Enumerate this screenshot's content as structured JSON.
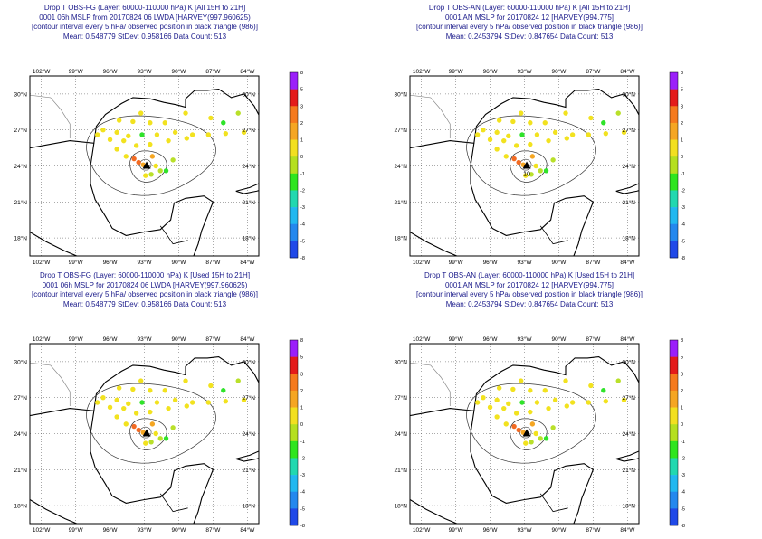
{
  "panels": [
    {
      "id": "obs-fg-all",
      "title": [
        "Drop T OBS-FG (Layer: 60000-110000 hPa) K [All 15H to 21H]",
        "0001 06h MSLP from 20170824 06 LWDA [HARVEY(997.960625)",
        "[contour interval every 5 hPa/ observed position in black triangle (986)]",
        "Mean: 0.548779 StDev: 0.958166 Data Count: 513"
      ],
      "center_label": ""
    },
    {
      "id": "obs-an-all",
      "title": [
        "Drop T OBS-AN (Layer: 60000-110000 hPa) K [All 15H to 21H]",
        "0001 AN MSLP for 20170824 12 [HARVEY(994.775]",
        "[contour interval every 5 hPa/ observed position in black triangle (986)]",
        "Mean: 0.2453794 StDev: 0.847654 Data Count: 513"
      ],
      "center_label": "10"
    },
    {
      "id": "obs-fg-used",
      "title": [
        "Drop T OBS-FG (Layer: 60000-110000 hPa) K [Used 15H to 21H]",
        "0001 06h MSLP for 20170824 06 LWDA [HARVEY(997.960625)",
        "[contour interval every 5 hPa/ observed position in black triangle (986)]",
        "Mean: 0.548779 StDev: 0.958166 Data Count: 513"
      ],
      "center_label": ""
    },
    {
      "id": "obs-an-used",
      "title": [
        "Drop T OBS-AN (Layer: 60000-110000 hPa) K [Used 15H to 21H]",
        "0001 AN MSLP for 20170824 12 [HARVEY(994.775]",
        "[contour interval every 5 hPa/ observed position in black triangle (986)]",
        "Mean: 0.2453794 StDev: 0.847654 Data Count: 513"
      ],
      "center_label": ""
    }
  ],
  "axes": {
    "lon_labels": [
      "102°W",
      "99°W",
      "96°W",
      "93°W",
      "90°W",
      "87°W",
      "84°W"
    ],
    "lon_values": [
      -102,
      -99,
      -96,
      -93,
      -90,
      -87,
      -84
    ],
    "lat_labels": [
      "30°N",
      "27°N",
      "24°N",
      "21°N",
      "18°N"
    ],
    "lat_values": [
      30,
      27,
      24,
      21,
      18
    ],
    "lon_range": [
      -103,
      -83
    ],
    "lat_range": [
      16.5,
      31.5
    ]
  },
  "colorbar": {
    "labels": [
      "8",
      "5",
      "3",
      "2",
      "1",
      "0",
      "-1",
      "-2",
      "-3",
      "-4",
      "-5",
      "-8"
    ],
    "colors": [
      "#9b1ffa",
      "#e41b1b",
      "#f57a1e",
      "#f5a623",
      "#f2e01f",
      "#b5e01f",
      "#2ee51f",
      "#22d8b0",
      "#22b8f0",
      "#2488ee",
      "#2049e8"
    ]
  },
  "legend_colors": {
    "point_colors": {
      "yellow": "#f2e21f",
      "lime": "#b9e02a",
      "green": "#2fe32a",
      "orange": "#f5a623",
      "red": "#f26a22"
    }
  },
  "storm": {
    "observed_position": {
      "lon": -92.8,
      "lat": 24.0
    },
    "model_center": {
      "lon": -93.4,
      "lat": 24.1
    }
  },
  "observations": [
    {
      "lon": -95.2,
      "lat": 27.8,
      "c": "yellow"
    },
    {
      "lon": -94.0,
      "lat": 27.7,
      "c": "yellow"
    },
    {
      "lon": -92.5,
      "lat": 27.6,
      "c": "yellow"
    },
    {
      "lon": -91.2,
      "lat": 27.6,
      "c": "yellow"
    },
    {
      "lon": -89.4,
      "lat": 28.4,
      "c": "yellow"
    },
    {
      "lon": -87.2,
      "lat": 28.0,
      "c": "yellow"
    },
    {
      "lon": -86.1,
      "lat": 27.6,
      "c": "green"
    },
    {
      "lon": -84.8,
      "lat": 28.4,
      "c": "lime"
    },
    {
      "lon": -93.3,
      "lat": 28.4,
      "c": "yellow"
    },
    {
      "lon": -96.6,
      "lat": 27.0,
      "c": "yellow"
    },
    {
      "lon": -95.4,
      "lat": 26.8,
      "c": "yellow"
    },
    {
      "lon": -94.4,
      "lat": 26.5,
      "c": "yellow"
    },
    {
      "lon": -93.2,
      "lat": 26.6,
      "c": "green"
    },
    {
      "lon": -91.9,
      "lat": 26.6,
      "c": "yellow"
    },
    {
      "lon": -90.3,
      "lat": 26.8,
      "c": "yellow"
    },
    {
      "lon": -88.8,
      "lat": 26.6,
      "c": "yellow"
    },
    {
      "lon": -87.4,
      "lat": 26.6,
      "c": "yellow"
    },
    {
      "lon": -85.9,
      "lat": 26.7,
      "c": "yellow"
    },
    {
      "lon": -84.3,
      "lat": 26.8,
      "c": "yellow"
    },
    {
      "lon": -97.1,
      "lat": 26.6,
      "c": "yellow"
    },
    {
      "lon": -96.0,
      "lat": 26.2,
      "c": "yellow"
    },
    {
      "lon": -94.8,
      "lat": 26.1,
      "c": "yellow"
    },
    {
      "lon": -93.7,
      "lat": 25.7,
      "c": "yellow"
    },
    {
      "lon": -92.5,
      "lat": 25.8,
      "c": "yellow"
    },
    {
      "lon": -90.9,
      "lat": 26.1,
      "c": "yellow"
    },
    {
      "lon": -89.3,
      "lat": 26.3,
      "c": "yellow"
    },
    {
      "lon": -95.4,
      "lat": 25.4,
      "c": "yellow"
    },
    {
      "lon": -94.6,
      "lat": 24.8,
      "c": "yellow"
    },
    {
      "lon": -93.9,
      "lat": 24.6,
      "c": "red"
    },
    {
      "lon": -93.5,
      "lat": 24.3,
      "c": "red"
    },
    {
      "lon": -93.1,
      "lat": 24.1,
      "c": "orange"
    },
    {
      "lon": -92.3,
      "lat": 24.8,
      "c": "orange"
    },
    {
      "lon": -92.0,
      "lat": 24.0,
      "c": "yellow"
    },
    {
      "lon": -91.6,
      "lat": 23.6,
      "c": "lime"
    },
    {
      "lon": -92.4,
      "lat": 23.3,
      "c": "lime"
    },
    {
      "lon": -92.9,
      "lat": 23.2,
      "c": "yellow"
    },
    {
      "lon": -91.1,
      "lat": 23.6,
      "c": "green"
    },
    {
      "lon": -90.5,
      "lat": 24.5,
      "c": "lime"
    }
  ]
}
